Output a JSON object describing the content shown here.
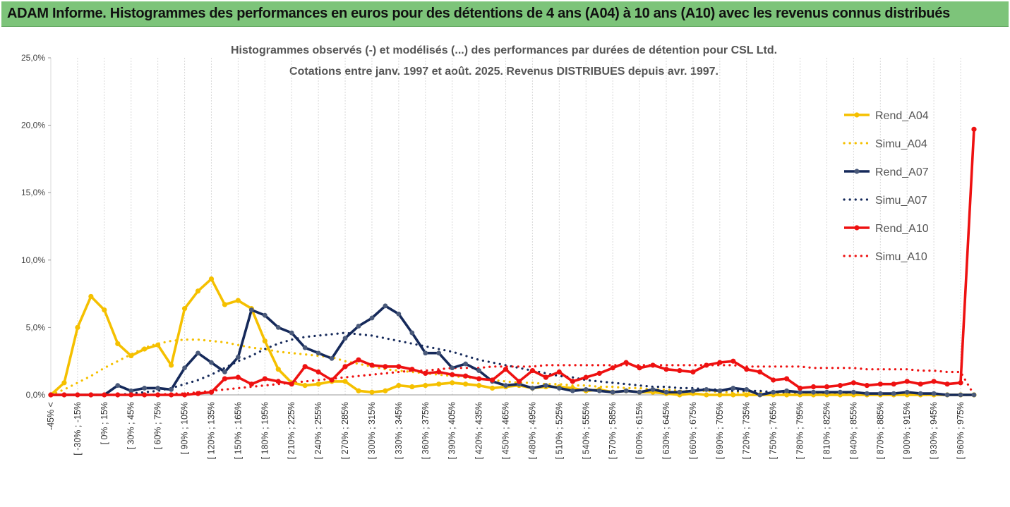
{
  "banner": {
    "title": "ADAM Informe. Histogrammes des performances en euros pour des détentions de 4 ans (A04) à 10 ans (A10) avec les revenus connus distribués"
  },
  "colors": {
    "a04": "#f5c000",
    "a07": "#15295a",
    "a10": "#ee1111",
    "banner": "#7dc47a",
    "grid": "#d9d9d9"
  },
  "chart_data": {
    "type": "line",
    "title": "Histogrammes observés (-) et modélisés (...) des performances par durées de détention pour CSL Ltd.",
    "subtitle": "Cotations entre janv. 1997 et août. 2025. Revenus DISTRIBUES depuis avr. 1997.",
    "ylim": [
      0,
      25
    ],
    "y_ticks": [
      "0,0%",
      "5,0%",
      "10,0%",
      "15,0%",
      "20,0%",
      "25,0%"
    ],
    "legend_position": "right",
    "x_labels": [
      "-45% <",
      "[ -30% ; -15%",
      "[ 0% ; 15%",
      "[ 30% ; 45%",
      "[ 60% ; 75%",
      "[ 90% ; 105%",
      "[ 120% ; 135%",
      "[ 150% ; 165%",
      "[ 180% ; 195%",
      "[ 210% ; 225%",
      "[ 240% ; 255%",
      "[ 270% ; 285%",
      "[ 300% ; 315%",
      "[ 330% ; 345%",
      "[ 360% ; 375%",
      "[ 390% ; 405%",
      "[ 420% ; 435%",
      "[ 450% ; 465%",
      "[ 480% ; 495%",
      "[ 510% ; 525%",
      "[ 540% ; 555%",
      "[ 570% ; 585%",
      "[ 600% ; 615%",
      "[ 630% ; 645%",
      "[ 660% ; 675%",
      "[ 690% ; 705%",
      "[ 720% ; 735%",
      "[ 750% ; 765%",
      "[ 780% ; 795%",
      "[ 810% ; 825%",
      "[ 840% ; 855%",
      "[ 870% ; 885%",
      "[ 900% ; 915%",
      "[ 930% ; 945%",
      "[ 960% ; 975%"
    ],
    "n_points": 70,
    "series": [
      {
        "name": "Rend_A04",
        "style": "solid",
        "color": "#f5c000",
        "values": [
          0,
          0.9,
          5.0,
          7.3,
          6.3,
          3.8,
          2.9,
          3.4,
          3.7,
          2.2,
          6.4,
          7.7,
          8.6,
          6.7,
          7.0,
          6.4,
          4.0,
          1.9,
          0.9,
          0.7,
          0.8,
          1.0,
          1.0,
          0.3,
          0.2,
          0.3,
          0.7,
          0.6,
          0.7,
          0.8,
          0.9,
          0.8,
          0.7,
          0.5,
          0.6,
          0.7,
          0.5,
          0.6,
          0.6,
          0.5,
          0.3,
          0.4,
          0.2,
          0.3,
          0.2,
          0.2,
          0.1,
          0,
          0.1,
          0,
          0,
          0,
          0,
          0,
          0,
          0,
          0,
          0,
          0,
          0,
          0,
          0,
          0,
          0,
          0,
          0,
          0,
          0,
          0,
          0
        ]
      },
      {
        "name": "Simu_A04",
        "style": "dotted",
        "color": "#f5c000",
        "values": [
          0,
          0.4,
          0.9,
          1.4,
          2.0,
          2.5,
          3.0,
          3.5,
          3.8,
          4.0,
          4.1,
          4.1,
          4.0,
          3.9,
          3.7,
          3.5,
          3.4,
          3.2,
          3.1,
          3.0,
          2.9,
          2.8,
          2.5,
          2.3,
          2.1,
          1.9,
          1.8,
          1.7,
          1.6,
          1.5,
          1.4,
          1.3,
          1.2,
          1.1,
          1.0,
          0.9,
          0.9,
          0.8,
          0.8,
          0.7,
          0.7,
          0.6,
          0.6,
          0.5,
          0.5,
          0.4,
          0.4,
          0.3,
          0.3,
          0.3,
          0.2,
          0.2,
          0.2,
          0.2,
          0.1,
          0.1,
          0.1,
          0.1,
          0.1,
          0.1,
          0.1,
          0.1,
          0,
          0,
          0,
          0,
          0,
          0,
          0,
          0
        ]
      },
      {
        "name": "Rend_A07",
        "style": "solid",
        "color": "#15295a",
        "values": [
          0,
          0,
          0,
          0,
          0,
          0.7,
          0.3,
          0.5,
          0.5,
          0.4,
          2.0,
          3.1,
          2.4,
          1.7,
          2.8,
          6.3,
          5.9,
          5.0,
          4.6,
          3.5,
          3.1,
          2.7,
          4.2,
          5.1,
          5.7,
          6.6,
          6.0,
          4.6,
          3.1,
          3.1,
          2.0,
          2.3,
          1.8,
          1.0,
          0.7,
          0.8,
          0.5,
          0.7,
          0.5,
          0.3,
          0.4,
          0.3,
          0.2,
          0.3,
          0.2,
          0.4,
          0.2,
          0.2,
          0.3,
          0.4,
          0.3,
          0.5,
          0.4,
          0,
          0.2,
          0.3,
          0.2,
          0.2,
          0.2,
          0.2,
          0.2,
          0.1,
          0.1,
          0.1,
          0.2,
          0.1,
          0.1,
          0,
          0,
          0
        ]
      },
      {
        "name": "Simu_A07",
        "style": "dotted",
        "color": "#15295a",
        "values": [
          0,
          0,
          0,
          0,
          0,
          0,
          0.1,
          0.2,
          0.3,
          0.5,
          0.8,
          1.1,
          1.5,
          2.0,
          2.5,
          2.9,
          3.4,
          3.8,
          4.1,
          4.3,
          4.4,
          4.5,
          4.6,
          4.5,
          4.4,
          4.2,
          4.0,
          3.8,
          3.6,
          3.4,
          3.2,
          2.9,
          2.6,
          2.4,
          2.2,
          2.0,
          1.8,
          1.6,
          1.4,
          1.3,
          1.1,
          1.0,
          0.9,
          0.8,
          0.7,
          0.6,
          0.6,
          0.5,
          0.5,
          0.4,
          0.4,
          0.3,
          0.3,
          0.3,
          0.2,
          0.2,
          0.2,
          0.2,
          0.1,
          0.1,
          0.1,
          0.1,
          0.1,
          0.1,
          0,
          0,
          0,
          0,
          0,
          0
        ]
      },
      {
        "name": "Rend_A10",
        "style": "solid",
        "color": "#ee1111",
        "values": [
          0,
          0,
          0,
          0,
          0,
          0,
          0,
          0,
          0,
          0,
          0,
          0.1,
          0.2,
          1.2,
          1.3,
          0.8,
          1.2,
          1.0,
          0.8,
          2.1,
          1.7,
          1.1,
          2.1,
          2.6,
          2.2,
          2.1,
          2.1,
          1.9,
          1.6,
          1.7,
          1.5,
          1.4,
          1.2,
          1.1,
          1.9,
          1.0,
          1.8,
          1.3,
          1.7,
          1.0,
          1.3,
          1.6,
          2.0,
          2.4,
          2.0,
          2.2,
          1.9,
          1.8,
          1.7,
          2.2,
          2.4,
          2.5,
          1.9,
          1.7,
          1.1,
          1.2,
          0.5,
          0.6,
          0.6,
          0.7,
          0.9,
          0.7,
          0.8,
          0.8,
          1.0,
          0.8,
          1.0,
          0.8,
          0.9,
          19.7
        ]
      },
      {
        "name": "Simu_A10",
        "style": "dotted",
        "color": "#ee1111",
        "values": [
          0,
          0,
          0,
          0,
          0,
          0,
          0,
          0,
          0,
          0.1,
          0.1,
          0.2,
          0.3,
          0.4,
          0.5,
          0.6,
          0.7,
          0.8,
          0.9,
          1.0,
          1.1,
          1.2,
          1.3,
          1.4,
          1.5,
          1.6,
          1.7,
          1.8,
          1.8,
          1.9,
          2.0,
          2.0,
          2.0,
          2.1,
          2.1,
          2.1,
          2.1,
          2.2,
          2.2,
          2.2,
          2.2,
          2.2,
          2.2,
          2.2,
          2.2,
          2.2,
          2.2,
          2.2,
          2.2,
          2.2,
          2.2,
          2.2,
          2.1,
          2.1,
          2.1,
          2.1,
          2.1,
          2.0,
          2.0,
          2.0,
          2.0,
          1.9,
          1.9,
          1.9,
          1.9,
          1.8,
          1.8,
          1.7,
          1.7,
          0
        ]
      }
    ]
  }
}
